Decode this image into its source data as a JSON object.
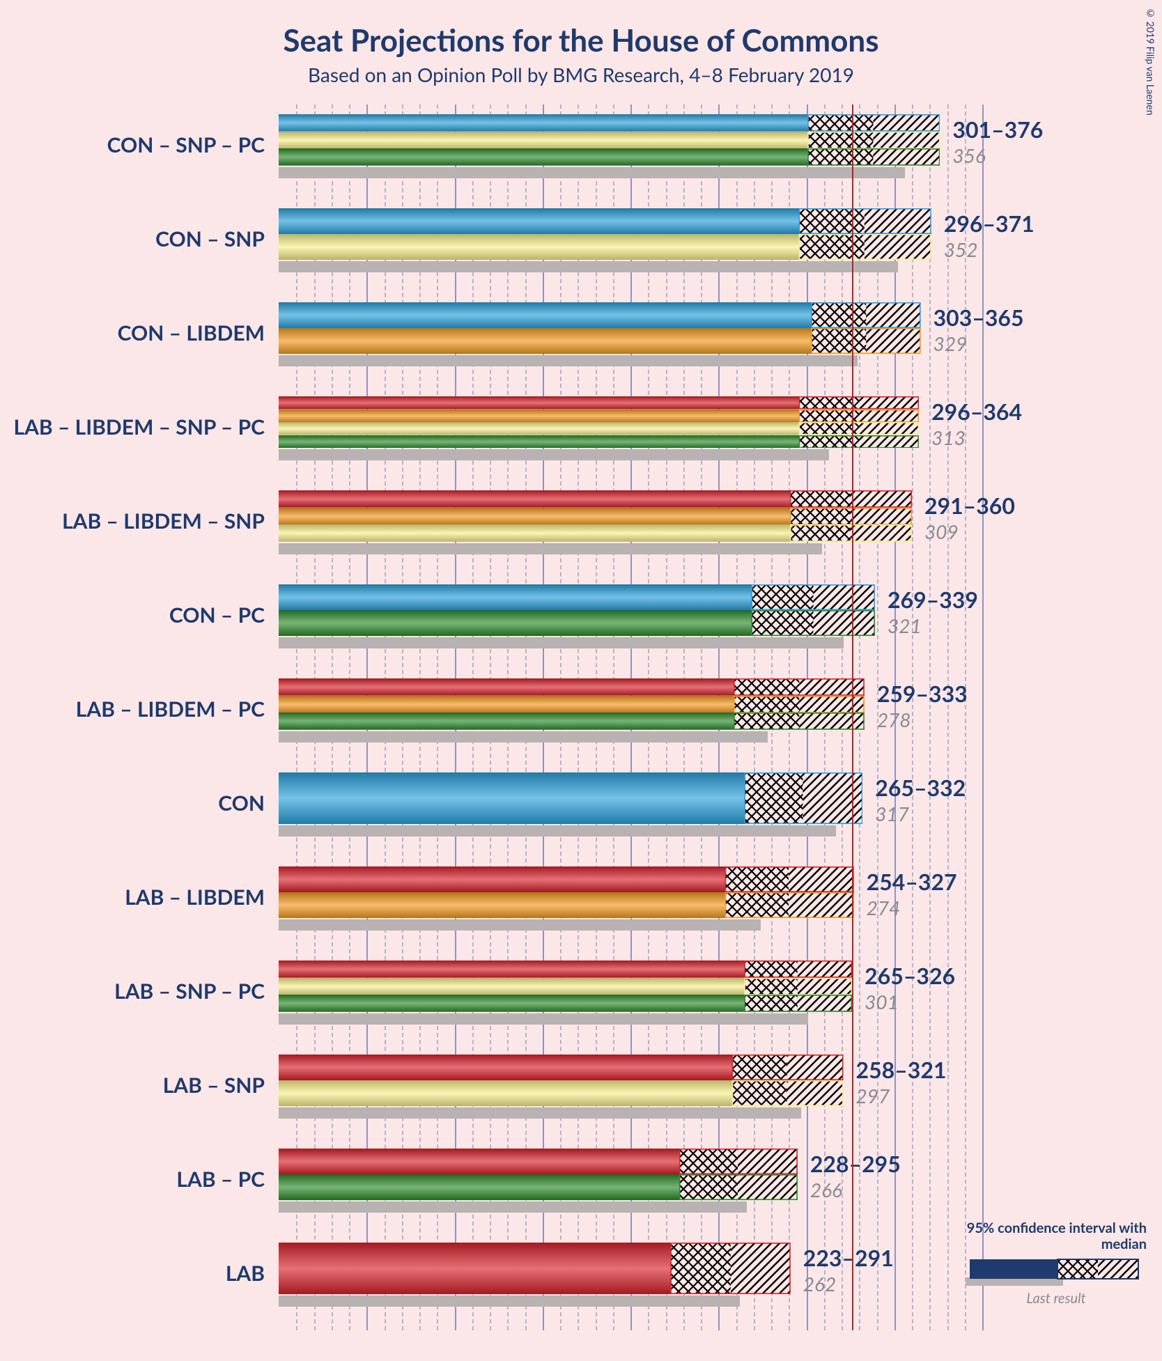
{
  "title": "Seat Projections for the House of Commons",
  "subtitle": "Based on an Opinion Poll by BMG Research, 4–8 February 2019",
  "copyright": "© 2019 Filip van Laenen",
  "chart": {
    "type": "bar",
    "x_max": 400,
    "major_tick_step": 50,
    "minor_tick_step": 10,
    "majority_seats": 326,
    "background_color": "#fbe7e7",
    "text_color": "#1e3a6e",
    "grid_color": "#3a4fa0",
    "majority_line_color": "#b52222",
    "shadow_color": "#b8b2b2",
    "party_colors": {
      "CON": "#2aa1dc",
      "LAB": "#d8232a",
      "LIBDEM": "#f39a1e",
      "SNP": "#f8ef8c",
      "PC": "#2e8b2e",
      "darknavy": "#1e3a6e"
    },
    "rows": [
      {
        "label": "CON – SNP – PC",
        "parties": [
          "CON",
          "SNP",
          "PC"
        ],
        "lo": 301,
        "med": 338,
        "hi": 376,
        "last": 356
      },
      {
        "label": "CON – SNP",
        "parties": [
          "CON",
          "SNP"
        ],
        "lo": 296,
        "med": 333,
        "hi": 371,
        "last": 352
      },
      {
        "label": "CON – LIBDEM",
        "parties": [
          "CON",
          "LIBDEM"
        ],
        "lo": 303,
        "med": 334,
        "hi": 365,
        "last": 329
      },
      {
        "label": "LAB – LIBDEM – SNP – PC",
        "parties": [
          "LAB",
          "LIBDEM",
          "SNP",
          "PC"
        ],
        "lo": 296,
        "med": 330,
        "hi": 364,
        "last": 313
      },
      {
        "label": "LAB – LIBDEM – SNP",
        "parties": [
          "LAB",
          "LIBDEM",
          "SNP"
        ],
        "lo": 291,
        "med": 325,
        "hi": 360,
        "last": 309
      },
      {
        "label": "CON – PC",
        "parties": [
          "CON",
          "PC"
        ],
        "lo": 269,
        "med": 304,
        "hi": 339,
        "last": 321
      },
      {
        "label": "LAB – LIBDEM – PC",
        "parties": [
          "LAB",
          "LIBDEM",
          "PC"
        ],
        "lo": 259,
        "med": 296,
        "hi": 333,
        "last": 278
      },
      {
        "label": "CON",
        "parties": [
          "CON"
        ],
        "lo": 265,
        "med": 298,
        "hi": 332,
        "last": 317
      },
      {
        "label": "LAB – LIBDEM",
        "parties": [
          "LAB",
          "LIBDEM"
        ],
        "lo": 254,
        "med": 290,
        "hi": 327,
        "last": 274
      },
      {
        "label": "LAB – SNP – PC",
        "parties": [
          "LAB",
          "SNP",
          "PC"
        ],
        "lo": 265,
        "med": 295,
        "hi": 326,
        "last": 301
      },
      {
        "label": "LAB – SNP",
        "parties": [
          "LAB",
          "SNP"
        ],
        "lo": 258,
        "med": 289,
        "hi": 321,
        "last": 297
      },
      {
        "label": "LAB – PC",
        "parties": [
          "LAB",
          "PC"
        ],
        "lo": 228,
        "med": 261,
        "hi": 295,
        "last": 266
      },
      {
        "label": "LAB",
        "parties": [
          "LAB"
        ],
        "lo": 223,
        "med": 257,
        "hi": 291,
        "last": 262
      }
    ],
    "legend": {
      "ci_title": "95% confidence interval with median",
      "last_label": "Last result"
    }
  }
}
